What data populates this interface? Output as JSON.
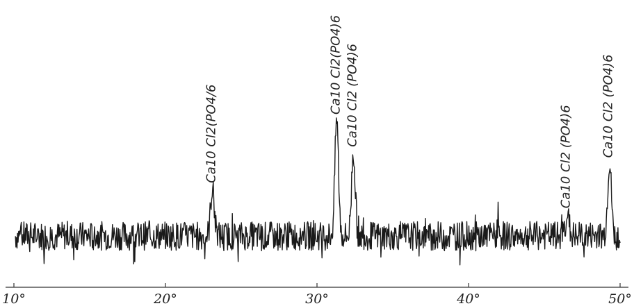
{
  "chart_data": {
    "type": "line",
    "title": "",
    "xlabel": "",
    "ylabel": "",
    "xlim": [
      10,
      50
    ],
    "ylim": [
      0,
      100
    ],
    "grid": false,
    "x_ticks": [
      10,
      20,
      30,
      40,
      50
    ],
    "x_tick_labels": [
      "10°",
      "20°",
      "30°",
      "40°",
      "50°"
    ],
    "peaks": [
      {
        "x": 23.1,
        "y": 44,
        "label": "Ca10 Cl2(PO4/6"
      },
      {
        "x": 31.3,
        "y": 82,
        "label": "Ca10 Cl2(PO4)6"
      },
      {
        "x": 32.4,
        "y": 64,
        "label": "Ca10 Cl2 (PO4)6"
      },
      {
        "x": 46.5,
        "y": 30,
        "label": "Ca10 Cl2 (PO4)6"
      },
      {
        "x": 49.3,
        "y": 58,
        "label": "Ca10 Cl2 (PO4)6"
      }
    ],
    "baseline": 17,
    "noise_amplitude": 8
  }
}
